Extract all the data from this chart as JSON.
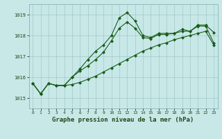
{
  "title": "",
  "xlabel": "Graphe pression niveau de la mer (hPa)",
  "background_color": "#c8e8e8",
  "grid_color": "#a0c8c8",
  "line_color": "#1a5c1a",
  "x_ticks": [
    0,
    1,
    2,
    3,
    4,
    5,
    6,
    7,
    8,
    9,
    10,
    11,
    12,
    13,
    14,
    15,
    16,
    17,
    18,
    19,
    20,
    21,
    22,
    23
  ],
  "ylim": [
    1014.5,
    1019.5
  ],
  "yticks": [
    1015,
    1016,
    1017,
    1018,
    1019
  ],
  "series": [
    [
      1015.7,
      1015.2,
      1015.7,
      1015.6,
      1015.6,
      1016.0,
      1016.4,
      1016.85,
      1017.25,
      1017.55,
      1018.0,
      1018.85,
      1019.1,
      1018.7,
      1018.0,
      1017.9,
      1018.1,
      1018.1,
      1018.1,
      1018.3,
      1018.2,
      1018.5,
      1018.5,
      1018.15
    ],
    [
      1015.7,
      1015.2,
      1015.7,
      1015.6,
      1015.6,
      1016.0,
      1016.3,
      1016.55,
      1016.85,
      1017.2,
      1017.75,
      1018.35,
      1018.65,
      1018.35,
      1017.9,
      1017.85,
      1018.05,
      1018.05,
      1018.1,
      1018.2,
      1018.2,
      1018.45,
      1018.45,
      1017.65
    ],
    [
      1015.7,
      1015.2,
      1015.7,
      1015.6,
      1015.6,
      1015.65,
      1015.75,
      1015.9,
      1016.05,
      1016.25,
      1016.45,
      1016.65,
      1016.85,
      1017.05,
      1017.25,
      1017.4,
      1017.55,
      1017.65,
      1017.8,
      1017.9,
      1018.0,
      1018.1,
      1018.2,
      1017.55
    ]
  ]
}
